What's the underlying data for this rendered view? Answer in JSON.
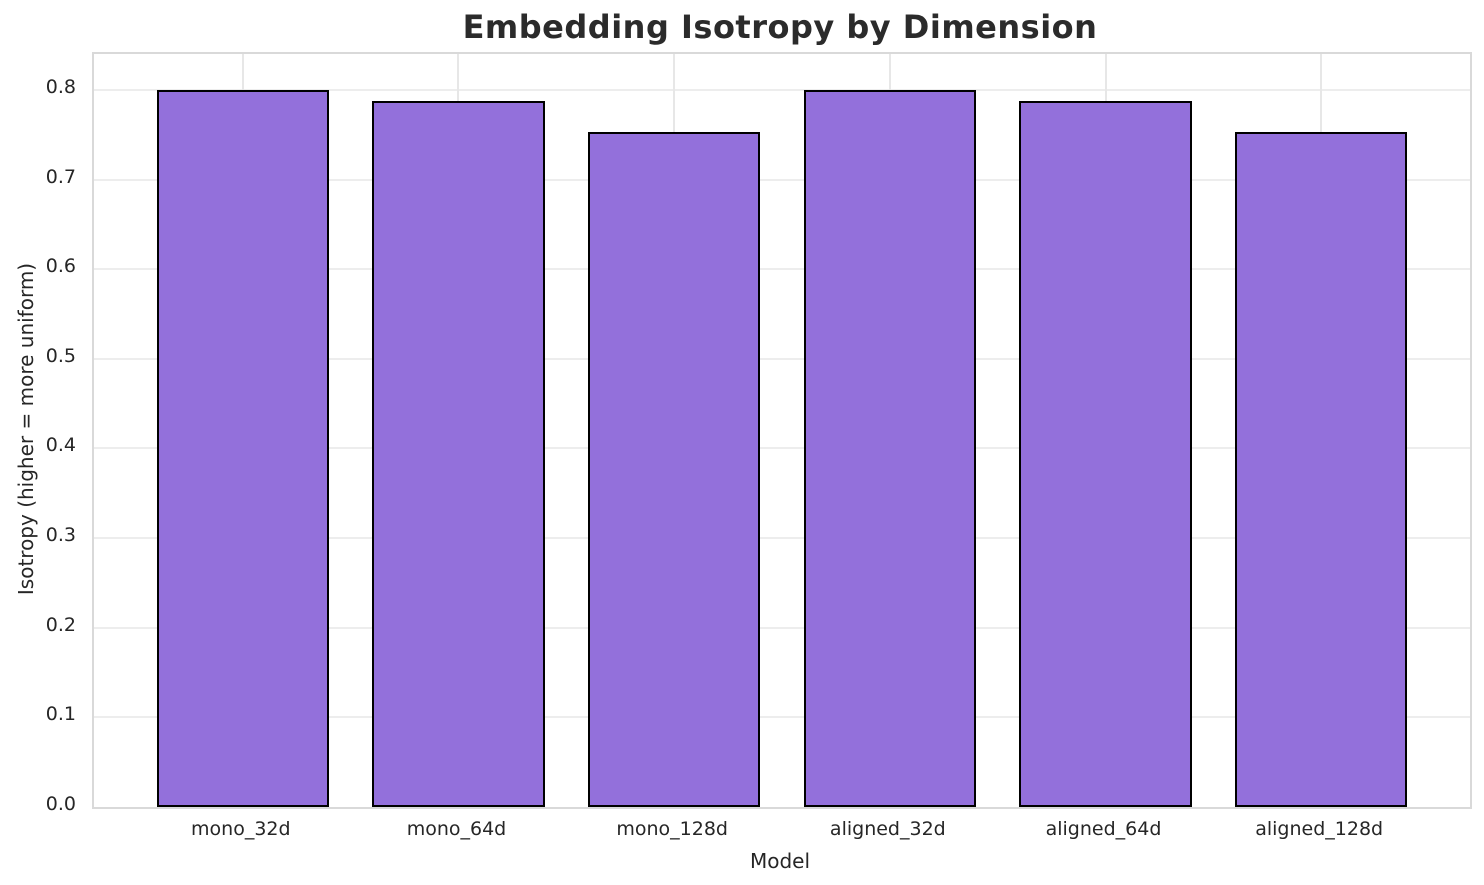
{
  "chart_data": {
    "type": "bar",
    "title": "Embedding Isotropy by Dimension",
    "xlabel": "Model",
    "ylabel": "Isotropy (higher = more uniform)",
    "categories": [
      "mono_32d",
      "mono_64d",
      "mono_128d",
      "aligned_32d",
      "aligned_64d",
      "aligned_128d"
    ],
    "values": [
      0.8,
      0.788,
      0.753,
      0.8,
      0.788,
      0.753
    ],
    "ylim": [
      0,
      0.84
    ],
    "yticks": [
      0.0,
      0.1,
      0.2,
      0.3,
      0.4,
      0.5,
      0.6,
      0.7,
      0.8
    ],
    "ytick_labels": [
      "0.0",
      "0.1",
      "0.2",
      "0.3",
      "0.4",
      "0.5",
      "0.6",
      "0.7",
      "0.8"
    ],
    "grid": true,
    "legend": "none",
    "colors": {
      "bar_fill": "#9370DB",
      "bar_edge": "#000000",
      "grid_horizontal": "#ededed",
      "grid_vertical": "#e7e7e7",
      "spine": "#d9d9d9",
      "text": "#262626"
    }
  }
}
